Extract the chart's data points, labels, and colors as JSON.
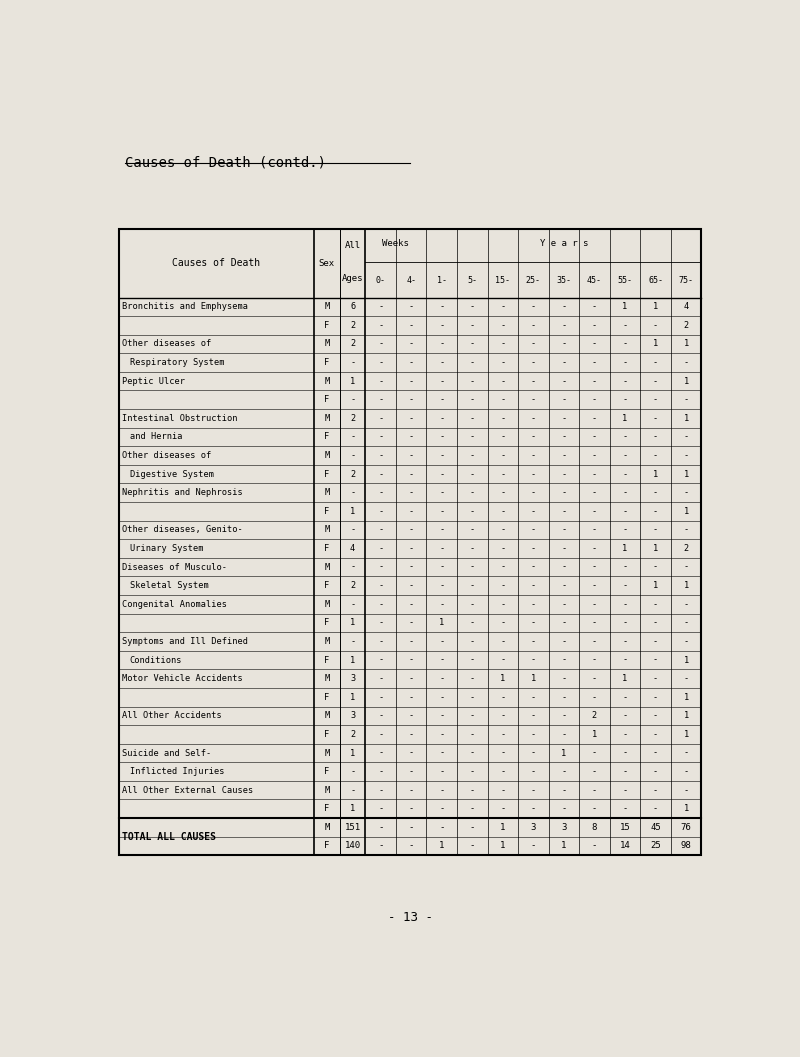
{
  "title": "Causes of Death (contd.)",
  "page_number": "- 13 -",
  "background_color": "#e8e4dc",
  "sub_headers": [
    "0-",
    "4-",
    "1-",
    "5-",
    "15-",
    "25-",
    "35-",
    "45-",
    "55-",
    "65-",
    "75-"
  ],
  "rows": [
    {
      "cause": "Bronchitis and Emphysema",
      "sex": "M",
      "all_ages": "6",
      "data": [
        "-",
        "-",
        "-",
        "-",
        "-",
        "-",
        "-",
        "-",
        "1",
        "1",
        "4"
      ]
    },
    {
      "cause": "",
      "sex": "F",
      "all_ages": "2",
      "data": [
        "-",
        "-",
        "-",
        "-",
        "-",
        "-",
        "-",
        "-",
        "-",
        "-",
        "2"
      ]
    },
    {
      "cause": "Other diseases of",
      "sex": "M",
      "all_ages": "2",
      "data": [
        "-",
        "-",
        "-",
        "-",
        "-",
        "-",
        "-",
        "-",
        "-",
        "1",
        "1"
      ]
    },
    {
      "cause": "  Respiratory System",
      "sex": "F",
      "all_ages": "-",
      "data": [
        "-",
        "-",
        "-",
        "-",
        "-",
        "-",
        "-",
        "-",
        "-",
        "-",
        "-"
      ]
    },
    {
      "cause": "Peptic Ulcer",
      "sex": "M",
      "all_ages": "1",
      "data": [
        "-",
        "-",
        "-",
        "-",
        "-",
        "-",
        "-",
        "-",
        "-",
        "-",
        "1"
      ]
    },
    {
      "cause": "",
      "sex": "F",
      "all_ages": "-",
      "data": [
        "-",
        "-",
        "-",
        "-",
        "-",
        "-",
        "-",
        "-",
        "-",
        "-",
        "-"
      ]
    },
    {
      "cause": "Intestinal Obstruction",
      "sex": "M",
      "all_ages": "2",
      "data": [
        "-",
        "-",
        "-",
        "-",
        "-",
        "-",
        "-",
        "-",
        "1",
        "-",
        "1"
      ]
    },
    {
      "cause": "  and Hernia",
      "sex": "F",
      "all_ages": "-",
      "data": [
        "-",
        "-",
        "-",
        "-",
        "-",
        "-",
        "-",
        "-",
        "-",
        "-",
        "-"
      ]
    },
    {
      "cause": "Other diseases of",
      "sex": "M",
      "all_ages": "-",
      "data": [
        "-",
        "-",
        "-",
        "-",
        "-",
        "-",
        "-",
        "-",
        "-",
        "-",
        "-"
      ]
    },
    {
      "cause": "  Digestive System",
      "sex": "F",
      "all_ages": "2",
      "data": [
        "-",
        "-",
        "-",
        "-",
        "-",
        "-",
        "-",
        "-",
        "-",
        "1",
        "1"
      ]
    },
    {
      "cause": "Nephritis and Nephrosis",
      "sex": "M",
      "all_ages": "-",
      "data": [
        "-",
        "-",
        "-",
        "-",
        "-",
        "-",
        "-",
        "-",
        "-",
        "-",
        "-"
      ]
    },
    {
      "cause": "",
      "sex": "F",
      "all_ages": "1",
      "data": [
        "-",
        "-",
        "-",
        "-",
        "-",
        "-",
        "-",
        "-",
        "-",
        "-",
        "1"
      ]
    },
    {
      "cause": "Other diseases, Genito-",
      "sex": "M",
      "all_ages": "-",
      "data": [
        "-",
        "-",
        "-",
        "-",
        "-",
        "-",
        "-",
        "-",
        "-",
        "-",
        "-"
      ]
    },
    {
      "cause": "  Urinary System",
      "sex": "F",
      "all_ages": "4",
      "data": [
        "-",
        "-",
        "-",
        "-",
        "-",
        "-",
        "-",
        "-",
        "1",
        "1",
        "2"
      ]
    },
    {
      "cause": "Diseases of Musculo-",
      "sex": "M",
      "all_ages": "-",
      "data": [
        "-",
        "-",
        "-",
        "-",
        "-",
        "-",
        "-",
        "-",
        "-",
        "-",
        "-"
      ]
    },
    {
      "cause": "  Skeletal System",
      "sex": "F",
      "all_ages": "2",
      "data": [
        "-",
        "-",
        "-",
        "-",
        "-",
        "-",
        "-",
        "-",
        "-",
        "1",
        "1"
      ]
    },
    {
      "cause": "Congenital Anomalies",
      "sex": "M",
      "all_ages": "-",
      "data": [
        "-",
        "-",
        "-",
        "-",
        "-",
        "-",
        "-",
        "-",
        "-",
        "-",
        "-"
      ]
    },
    {
      "cause": "",
      "sex": "F",
      "all_ages": "1",
      "data": [
        "-",
        "-",
        "1",
        "-",
        "-",
        "-",
        "-",
        "-",
        "-",
        "-",
        "-"
      ]
    },
    {
      "cause": "Symptoms and Ill Defined",
      "sex": "M",
      "all_ages": "-",
      "data": [
        "-",
        "-",
        "-",
        "-",
        "-",
        "-",
        "-",
        "-",
        "-",
        "-",
        "-"
      ]
    },
    {
      "cause": "  Conditions",
      "sex": "F",
      "all_ages": "1",
      "data": [
        "-",
        "-",
        "-",
        "-",
        "-",
        "-",
        "-",
        "-",
        "-",
        "-",
        "1"
      ]
    },
    {
      "cause": "Motor Vehicle Accidents",
      "sex": "M",
      "all_ages": "3",
      "data": [
        "-",
        "-",
        "-",
        "-",
        "1",
        "1",
        "-",
        "-",
        "1",
        "-",
        "-"
      ]
    },
    {
      "cause": "",
      "sex": "F",
      "all_ages": "1",
      "data": [
        "-",
        "-",
        "-",
        "-",
        "-",
        "-",
        "-",
        "-",
        "-",
        "-",
        "1"
      ]
    },
    {
      "cause": "All Other Accidents",
      "sex": "M",
      "all_ages": "3",
      "data": [
        "-",
        "-",
        "-",
        "-",
        "-",
        "-",
        "-",
        "2",
        "-",
        "-",
        "1"
      ]
    },
    {
      "cause": "",
      "sex": "F",
      "all_ages": "2",
      "data": [
        "-",
        "-",
        "-",
        "-",
        "-",
        "-",
        "-",
        "1",
        "-",
        "-",
        "1"
      ]
    },
    {
      "cause": "Suicide and Self-",
      "sex": "M",
      "all_ages": "1",
      "data": [
        "-",
        "-",
        "-",
        "-",
        "-",
        "-",
        "1",
        "-",
        "-",
        "-",
        "-"
      ]
    },
    {
      "cause": "  Inflicted Injuries",
      "sex": "F",
      "all_ages": "-",
      "data": [
        "-",
        "-",
        "-",
        "-",
        "-",
        "-",
        "-",
        "-",
        "-",
        "-",
        "-"
      ]
    },
    {
      "cause": "All Other External Causes",
      "sex": "M",
      "all_ages": "-",
      "data": [
        "-",
        "-",
        "-",
        "-",
        "-",
        "-",
        "-",
        "-",
        "-",
        "-",
        "-"
      ]
    },
    {
      "cause": "",
      "sex": "F",
      "all_ages": "1",
      "data": [
        "-",
        "-",
        "-",
        "-",
        "-",
        "-",
        "-",
        "-",
        "-",
        "-",
        "1"
      ]
    }
  ],
  "total": {
    "label": "TOTAL ALL CAUSES",
    "M": {
      "all_ages": "151",
      "data": [
        "-",
        "-",
        "-",
        "-",
        "1",
        "3",
        "3",
        "8",
        "15",
        "45",
        "76"
      ]
    },
    "F": {
      "all_ages": "140",
      "data": [
        "-",
        "-",
        "1",
        "-",
        "1",
        "-",
        "1",
        "-",
        "14",
        "25",
        "98"
      ]
    }
  }
}
